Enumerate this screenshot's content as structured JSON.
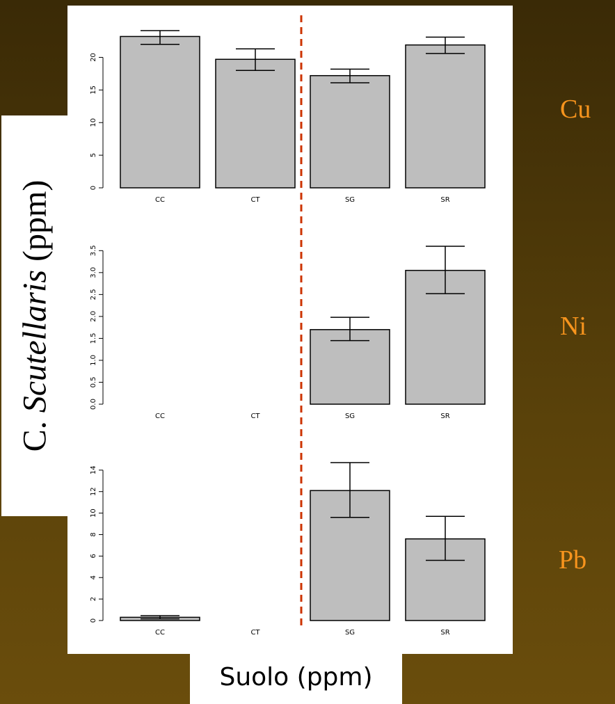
{
  "ylabel": {
    "prefix": "C. ",
    "italic": "Scutellaris",
    "suffix": " (ppm)"
  },
  "xlabel": "Suolo (ppm)",
  "colors": {
    "bar": "#bebebe",
    "divider": "#cc3300",
    "metal_label": "#f7941d"
  },
  "chart_data": [
    {
      "type": "bar",
      "label": "Cu",
      "categories": [
        "CC",
        "CT",
        "SG",
        "SR"
      ],
      "values": [
        23.2,
        19.7,
        17.2,
        21.9
      ],
      "err_low": [
        22.0,
        18.0,
        16.1,
        20.6
      ],
      "err_high": [
        24.1,
        21.3,
        18.2,
        23.1
      ],
      "ylim": [
        0,
        24.1
      ],
      "yticks": [
        0,
        5,
        10,
        15,
        20
      ],
      "ytick_labels": [
        "0",
        "5",
        "10",
        "15",
        "20"
      ]
    },
    {
      "type": "bar",
      "label": "Ni",
      "categories": [
        "CC",
        "CT",
        "SG",
        "SR"
      ],
      "values": [
        0,
        0,
        1.7,
        3.05
      ],
      "err_low": [
        null,
        null,
        1.45,
        2.52
      ],
      "err_high": [
        null,
        null,
        1.98,
        3.6
      ],
      "ylim": [
        0,
        3.6
      ],
      "yticks": [
        0,
        0.5,
        1.0,
        1.5,
        2.0,
        2.5,
        3.0,
        3.5
      ],
      "ytick_labels": [
        "0.0",
        "0.5",
        "1.0",
        "1.5",
        "2.0",
        "2.5",
        "3.0",
        "3.5"
      ]
    },
    {
      "type": "bar",
      "label": "Pb",
      "categories": [
        "CC",
        "CT",
        "SG",
        "SR"
      ],
      "values": [
        0.3,
        0,
        12.1,
        7.6
      ],
      "err_low": [
        0.15,
        null,
        9.6,
        5.6
      ],
      "err_high": [
        0.45,
        null,
        14.7,
        9.7
      ],
      "ylim": [
        0,
        14.7
      ],
      "yticks": [
        0,
        2,
        4,
        6,
        8,
        10,
        12,
        14
      ],
      "ytick_labels": [
        "0",
        "2",
        "4",
        "6",
        "8",
        "10",
        "12",
        "14"
      ]
    }
  ]
}
